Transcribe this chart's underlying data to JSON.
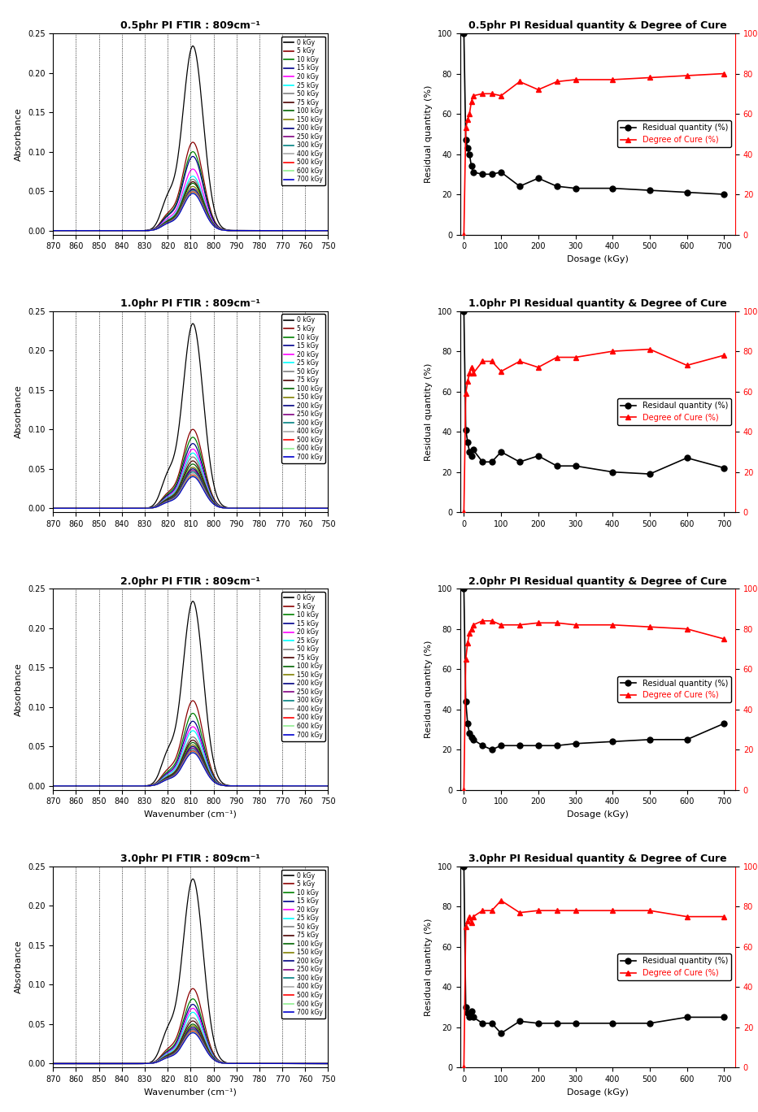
{
  "panels": [
    {
      "ftir_title": "0.5phr PI FTIR : 809cm⁻¹",
      "rq_doc_title": "0.5phr PI Residual quantity & Degree of Cure",
      "dosages": [
        0,
        5,
        10,
        15,
        20,
        25,
        50,
        75,
        100,
        150,
        200,
        250,
        300,
        400,
        500,
        600,
        700
      ],
      "residual": [
        100,
        47,
        43,
        40,
        34,
        31,
        30,
        30,
        31,
        24,
        28,
        24,
        23,
        23,
        22,
        21,
        20
      ],
      "doc": [
        0,
        53,
        57,
        60,
        66,
        69,
        70,
        70,
        69,
        76,
        72,
        76,
        77,
        77,
        78,
        79,
        80
      ],
      "peak_heights": [
        0.234,
        0.112,
        0.1,
        0.094,
        0.078,
        0.069,
        0.065,
        0.062,
        0.06,
        0.056,
        0.053,
        0.052,
        0.051,
        0.05,
        0.049,
        0.048,
        0.047
      ],
      "show_xlabel_ftir": false,
      "show_xlabel_rq": true,
      "legend_rq": [
        "Residual quantity (%)",
        "Degree of Cure (%)"
      ]
    },
    {
      "ftir_title": "1.0phr PI FTIR : 809cm⁻¹",
      "rq_doc_title": "1.0phr PI Residual quantity & Degree of Cure",
      "dosages": [
        0,
        5,
        10,
        15,
        20,
        25,
        50,
        75,
        100,
        150,
        200,
        250,
        300,
        400,
        500,
        600,
        700
      ],
      "residual": [
        100,
        41,
        35,
        30,
        28,
        31,
        25,
        25,
        30,
        25,
        28,
        23,
        23,
        20,
        19,
        27,
        22
      ],
      "doc": [
        0,
        59,
        65,
        69,
        72,
        69,
        75,
        75,
        70,
        75,
        72,
        77,
        77,
        80,
        81,
        73,
        78
      ],
      "peak_heights": [
        0.234,
        0.1,
        0.09,
        0.082,
        0.075,
        0.07,
        0.065,
        0.06,
        0.056,
        0.052,
        0.05,
        0.048,
        0.046,
        0.044,
        0.042,
        0.041,
        0.04
      ],
      "show_xlabel_ftir": false,
      "show_xlabel_rq": false,
      "legend_rq": [
        "Residaul quantity (%)",
        "Degree of Cure (%)"
      ]
    },
    {
      "ftir_title": "2.0phr PI FTIR : 809cm⁻¹",
      "rq_doc_title": "2.0phr PI Residual quantity & Degree of Cure",
      "dosages": [
        0,
        5,
        10,
        15,
        20,
        25,
        50,
        75,
        100,
        150,
        200,
        250,
        300,
        400,
        500,
        600,
        700
      ],
      "residual": [
        100,
        44,
        33,
        28,
        26,
        25,
        22,
        20,
        22,
        22,
        22,
        22,
        23,
        24,
        25,
        25,
        33
      ],
      "doc": [
        0,
        65,
        73,
        78,
        80,
        82,
        84,
        84,
        82,
        82,
        83,
        83,
        82,
        82,
        81,
        80,
        75
      ],
      "peak_heights": [
        0.234,
        0.108,
        0.092,
        0.082,
        0.075,
        0.07,
        0.062,
        0.058,
        0.055,
        0.052,
        0.05,
        0.048,
        0.046,
        0.045,
        0.044,
        0.043,
        0.042
      ],
      "show_xlabel_ftir": true,
      "show_xlabel_rq": true,
      "legend_rq": [
        "Residual quantity (%)",
        "Degree of Cure (%)"
      ]
    },
    {
      "ftir_title": "3.0phr PI FTIR : 809cm⁻¹",
      "rq_doc_title": "3.0phr PI Residual quantity & Degree of Cure",
      "dosages": [
        0,
        5,
        10,
        15,
        20,
        25,
        50,
        75,
        100,
        150,
        200,
        250,
        300,
        400,
        500,
        600,
        700
      ],
      "residual": [
        100,
        30,
        27,
        25,
        28,
        25,
        22,
        22,
        17,
        23,
        22,
        22,
        22,
        22,
        22,
        25,
        25
      ],
      "doc": [
        0,
        70,
        73,
        75,
        72,
        75,
        78,
        78,
        83,
        77,
        78,
        78,
        78,
        78,
        78,
        75,
        75
      ],
      "peak_heights": [
        0.234,
        0.095,
        0.082,
        0.075,
        0.07,
        0.065,
        0.058,
        0.054,
        0.05,
        0.048,
        0.046,
        0.044,
        0.043,
        0.042,
        0.041,
        0.04,
        0.039
      ],
      "show_xlabel_ftir": true,
      "show_xlabel_rq": true,
      "legend_rq": [
        "Residual quantity (%)",
        "Degree of Cure (%)"
      ]
    }
  ],
  "ftir_colors": [
    "#000000",
    "#8B0000",
    "#008000",
    "#00008B",
    "#FF00FF",
    "#00FFFF",
    "#808080",
    "#4B0000",
    "#006400",
    "#808000",
    "#000080",
    "#800080",
    "#008080",
    "#A9A9A9",
    "#FF0000",
    "#90EE90",
    "#0000CD"
  ],
  "legend_labels": [
    "0 kGy",
    "5 kGy",
    "10 kGy",
    "15 kGy",
    "20 kGy",
    "25 kGy",
    "50 kGy",
    "75 kGy",
    "100 kGy",
    "150 kGy",
    "200 kGy",
    "250 kGy",
    "300 kGy",
    "400 kGy",
    "500 kGy",
    "600 kGy",
    "700 kGy"
  ],
  "xticks_ftir": [
    870,
    860,
    850,
    840,
    830,
    820,
    810,
    800,
    790,
    780,
    770,
    760,
    750
  ],
  "yticks_ftir": [
    0.0,
    0.05,
    0.1,
    0.15,
    0.2,
    0.25
  ],
  "xticks_rq": [
    0,
    100,
    200,
    300,
    400,
    500,
    600,
    700
  ],
  "yticks_rq": [
    0,
    20,
    40,
    60,
    80,
    100
  ],
  "background_color": "#FFFFFF"
}
